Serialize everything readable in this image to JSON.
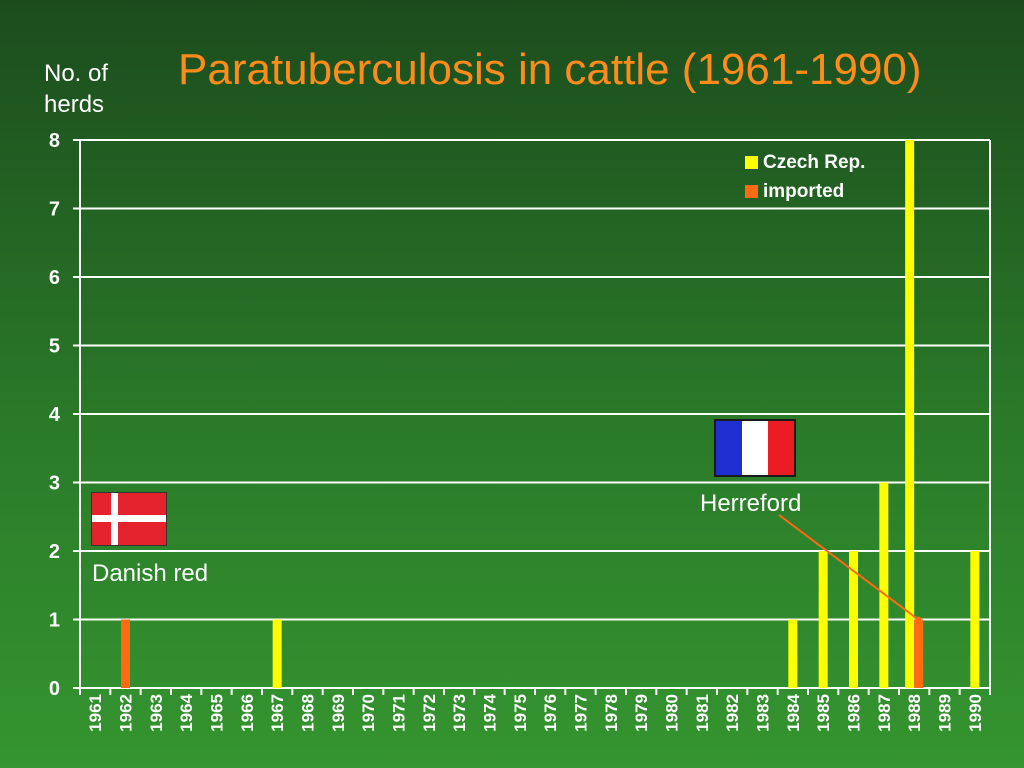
{
  "title": "Paratuberculosis in cattle (1961-1990)",
  "ylabel": "No. of herds",
  "annotations": {
    "danish": "Danish red",
    "hereford": "Herreford"
  },
  "flags": {
    "danish": {
      "background": "#e5232d",
      "cross": "#ffffff"
    },
    "french": {
      "blue": "#1f2fd1",
      "white": "#ffffff",
      "red": "#ec1c24",
      "border": "#1a1a1a"
    }
  },
  "colors": {
    "czech": "#ffff00",
    "imported": "#ff6a13",
    "axis": "#ffffff",
    "grid": "#ffffff",
    "title": "#ff8c1a",
    "background_top": "#1c4c1d",
    "background_bottom": "#35952f",
    "arrow": "#ff6a13"
  },
  "legend": {
    "items": [
      {
        "label": "Czech Rep.",
        "color": "#ffff00"
      },
      {
        "label": "imported",
        "color": "#ff6a13"
      }
    ]
  },
  "chart_data": {
    "type": "bar",
    "title": "Paratuberculosis in cattle (1961-1990)",
    "xlabel": "",
    "ylabel": "No. of herds",
    "ylim": [
      0,
      8
    ],
    "yticks": [
      0,
      1,
      2,
      3,
      4,
      5,
      6,
      7,
      8
    ],
    "grid": true,
    "legend_position": "top-right",
    "categories": [
      "1961",
      "1962",
      "1963",
      "1964",
      "1965",
      "1966",
      "1967",
      "1968",
      "1969",
      "1970",
      "1971",
      "1972",
      "1973",
      "1974",
      "1975",
      "1976",
      "1977",
      "1978",
      "1979",
      "1980",
      "1981",
      "1982",
      "1983",
      "1984",
      "1985",
      "1986",
      "1987",
      "1988",
      "1989",
      "1990"
    ],
    "series": [
      {
        "name": "Czech Rep.",
        "values": [
          0,
          0,
          0,
          0,
          0,
          0,
          1,
          0,
          0,
          0,
          0,
          0,
          0,
          0,
          0,
          0,
          0,
          0,
          0,
          0,
          0,
          0,
          0,
          1,
          2,
          2,
          3,
          8,
          0,
          2
        ]
      },
      {
        "name": "imported",
        "values": [
          0,
          1,
          0,
          0,
          0,
          0,
          0,
          0,
          0,
          0,
          0,
          0,
          0,
          0,
          0,
          0,
          0,
          0,
          0,
          0,
          0,
          0,
          0,
          0,
          0,
          0,
          0,
          1,
          0,
          0
        ]
      }
    ]
  }
}
